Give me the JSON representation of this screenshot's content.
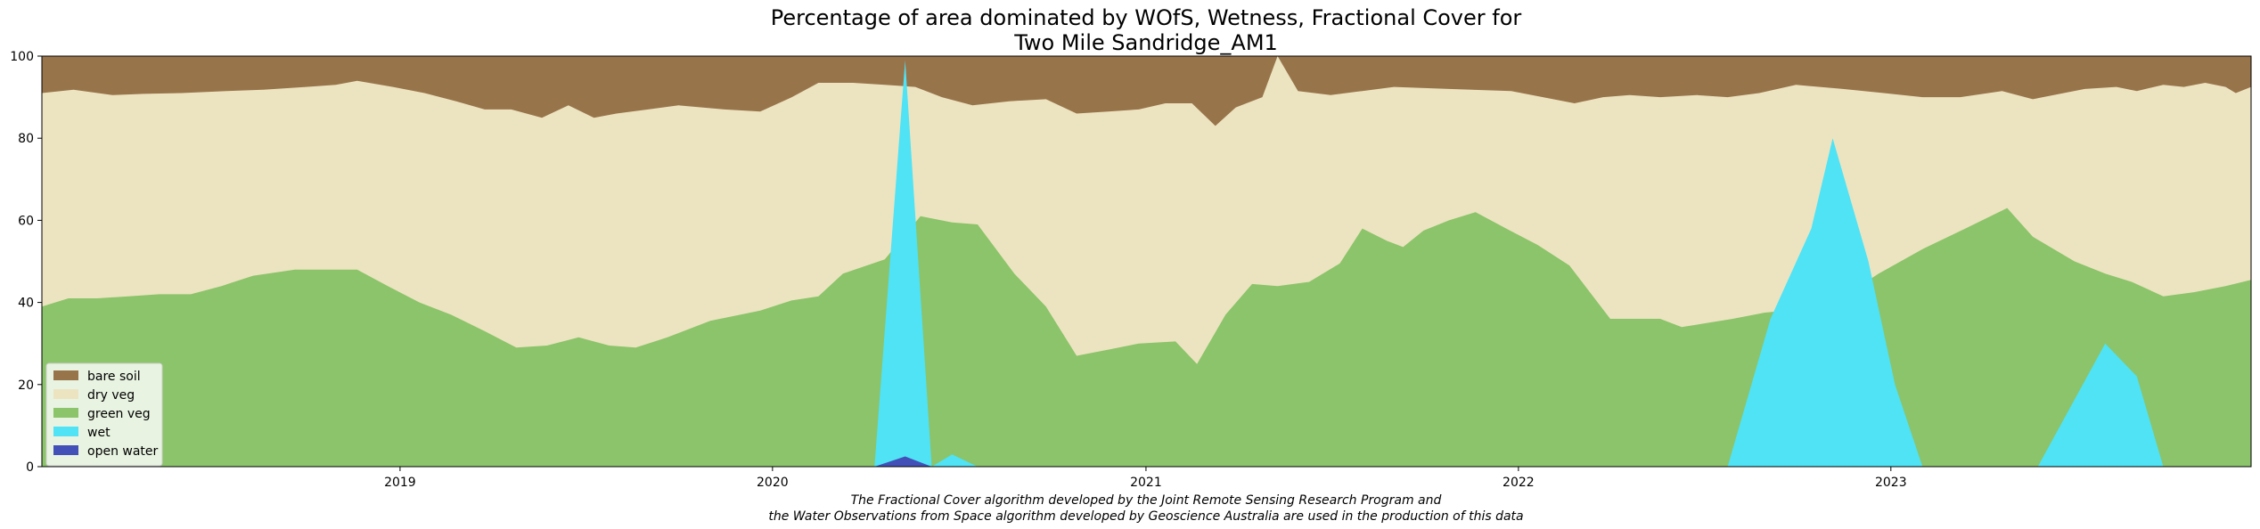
{
  "chart_data": {
    "type": "area",
    "stacked": true,
    "title_lines": [
      "Percentage of area dominated by WOfS, Wetness, Fractional Cover for",
      "Two Mile Sandridge_AM1"
    ],
    "xlabel": "",
    "ylabel": "",
    "x_range": [
      "2018-01-15",
      "2023-12-20"
    ],
    "ylim": [
      0,
      100
    ],
    "y_ticks": [
      "0",
      "20",
      "40",
      "60",
      "80",
      "100"
    ],
    "x_ticks": [
      {
        "date": "2019-01-01",
        "label": "2019"
      },
      {
        "date": "2020-01-01",
        "label": "2020"
      },
      {
        "date": "2021-01-01",
        "label": "2021"
      },
      {
        "date": "2022-01-01",
        "label": "2022"
      },
      {
        "date": "2023-01-01",
        "label": "2023"
      }
    ],
    "legend_location": "lower-left",
    "series": [
      {
        "name": "open water",
        "color": "#4250b8",
        "points": [
          [
            "2018-01-15",
            0
          ],
          [
            "2020-04-10",
            0
          ],
          [
            "2020-05-10",
            2.5
          ],
          [
            "2020-06-05",
            0
          ],
          [
            "2023-12-20",
            0
          ]
        ]
      },
      {
        "name": "wet",
        "color": "#4fe3f5",
        "points": [
          [
            "2018-01-15",
            0
          ],
          [
            "2020-04-10",
            0
          ],
          [
            "2020-05-10",
            99
          ],
          [
            "2020-06-05",
            0
          ],
          [
            "2020-06-25",
            3
          ],
          [
            "2020-07-20",
            0
          ],
          [
            "2022-07-25",
            0
          ],
          [
            "2022-09-05",
            36
          ],
          [
            "2022-10-15",
            58
          ],
          [
            "2022-11-05",
            80
          ],
          [
            "2022-12-10",
            50
          ],
          [
            "2023-01-05",
            20
          ],
          [
            "2023-02-01",
            0
          ],
          [
            "2023-05-25",
            0
          ],
          [
            "2023-07-30",
            30
          ],
          [
            "2023-08-30",
            22
          ],
          [
            "2023-09-25",
            0
          ],
          [
            "2023-12-20",
            0
          ]
        ]
      },
      {
        "name": "green veg",
        "color": "#8bc46a",
        "points": [
          [
            "2018-01-15",
            39
          ],
          [
            "2018-02-10",
            41
          ],
          [
            "2018-03-10",
            41
          ],
          [
            "2018-04-10",
            41.5
          ],
          [
            "2018-05-10",
            42
          ],
          [
            "2018-06-10",
            42
          ],
          [
            "2018-07-10",
            44
          ],
          [
            "2018-08-10",
            46.5
          ],
          [
            "2018-09-20",
            48
          ],
          [
            "2018-10-20",
            48
          ],
          [
            "2018-11-20",
            48
          ],
          [
            "2018-12-20",
            44
          ],
          [
            "2019-01-20",
            40
          ],
          [
            "2019-02-20",
            37
          ],
          [
            "2019-03-25",
            33
          ],
          [
            "2019-04-25",
            29
          ],
          [
            "2019-05-25",
            29.5
          ],
          [
            "2019-06-25",
            31.5
          ],
          [
            "2019-07-25",
            29.5
          ],
          [
            "2019-08-20",
            29
          ],
          [
            "2019-09-20",
            31.5
          ],
          [
            "2019-11-01",
            35.5
          ],
          [
            "2019-12-20",
            38
          ],
          [
            "2020-01-20",
            40.5
          ],
          [
            "2020-02-15",
            41.5
          ],
          [
            "2020-03-10",
            47
          ],
          [
            "2020-04-20",
            50.5
          ],
          [
            "2020-05-25",
            61
          ],
          [
            "2020-06-25",
            59.5
          ],
          [
            "2020-07-20",
            59
          ],
          [
            "2020-08-25",
            47
          ],
          [
            "2020-09-25",
            39
          ],
          [
            "2020-10-25",
            27
          ],
          [
            "2020-11-25",
            28.5
          ],
          [
            "2020-12-25",
            30
          ],
          [
            "2021-01-30",
            30.5
          ],
          [
            "2021-02-20",
            25
          ],
          [
            "2021-03-20",
            37
          ],
          [
            "2021-04-15",
            44.5
          ],
          [
            "2021-05-10",
            44
          ],
          [
            "2021-06-10",
            45
          ],
          [
            "2021-07-10",
            49.5
          ],
          [
            "2021-08-01",
            58
          ],
          [
            "2021-08-25",
            55
          ],
          [
            "2021-09-10",
            53.5
          ],
          [
            "2021-09-30",
            57.5
          ],
          [
            "2021-10-25",
            60
          ],
          [
            "2021-11-20",
            62
          ],
          [
            "2021-12-20",
            58
          ],
          [
            "2022-01-20",
            54
          ],
          [
            "2022-02-20",
            49
          ],
          [
            "2022-04-01",
            36
          ],
          [
            "2022-05-01",
            36
          ],
          [
            "2022-05-20",
            36
          ],
          [
            "2022-06-10",
            34
          ],
          [
            "2022-07-05",
            35
          ],
          [
            "2022-07-30",
            36
          ],
          [
            "2022-08-30",
            37.5
          ],
          [
            "2022-09-20",
            38
          ],
          [
            "2022-10-10",
            42.5
          ],
          [
            "2022-11-10",
            40.5
          ],
          [
            "2022-12-20",
            47
          ],
          [
            "2023-02-01",
            53
          ],
          [
            "2023-03-15",
            58
          ],
          [
            "2023-04-25",
            63
          ],
          [
            "2023-05-20",
            56
          ],
          [
            "2023-06-30",
            50
          ],
          [
            "2023-07-30",
            47
          ],
          [
            "2023-08-25",
            45
          ],
          [
            "2023-09-25",
            41.5
          ],
          [
            "2023-10-25",
            42.5
          ],
          [
            "2023-11-25",
            44
          ],
          [
            "2023-12-20",
            45.5
          ]
        ]
      },
      {
        "name": "dry veg",
        "color": "#ece4c0",
        "points": []
      },
      {
        "name": "bare soil",
        "color": "#98744b",
        "points": []
      }
    ]
  },
  "legend": [
    "bare soil",
    "dry veg",
    "green veg",
    "wet",
    "open water"
  ],
  "caption_lines": [
    "The Fractional Cover algorithm developed by the Joint Remote Sensing Research Program and",
    "the Water Observations from Space algorithm developed by Geoscience Australia are used in the production of this data"
  ]
}
